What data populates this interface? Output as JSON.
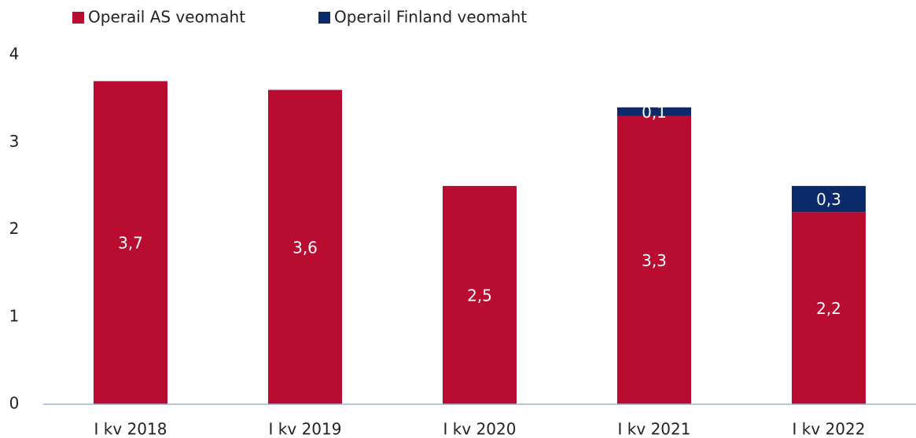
{
  "chart_data": {
    "type": "bar",
    "stacked": true,
    "categories": [
      "I kv 2018",
      "I kv 2019",
      "I kv 2020",
      "I kv 2021",
      "I kv 2022"
    ],
    "series": [
      {
        "name": "Operail AS veomaht",
        "color": "#b80d30",
        "values": [
          3.7,
          3.6,
          2.5,
          3.3,
          2.2
        ],
        "value_labels": [
          "3,7",
          "3,6",
          "2,5",
          "3,3",
          "2,2"
        ]
      },
      {
        "name": "Operail Finland veomaht",
        "color": "#0b2a69",
        "values": [
          null,
          null,
          null,
          0.1,
          0.3
        ],
        "value_labels": [
          null,
          null,
          null,
          "0,1",
          "0,3"
        ]
      }
    ],
    "ylim": [
      0,
      4
    ],
    "yticks": [
      0,
      1,
      2,
      3,
      4
    ],
    "grid": false,
    "legend": "top-left"
  }
}
